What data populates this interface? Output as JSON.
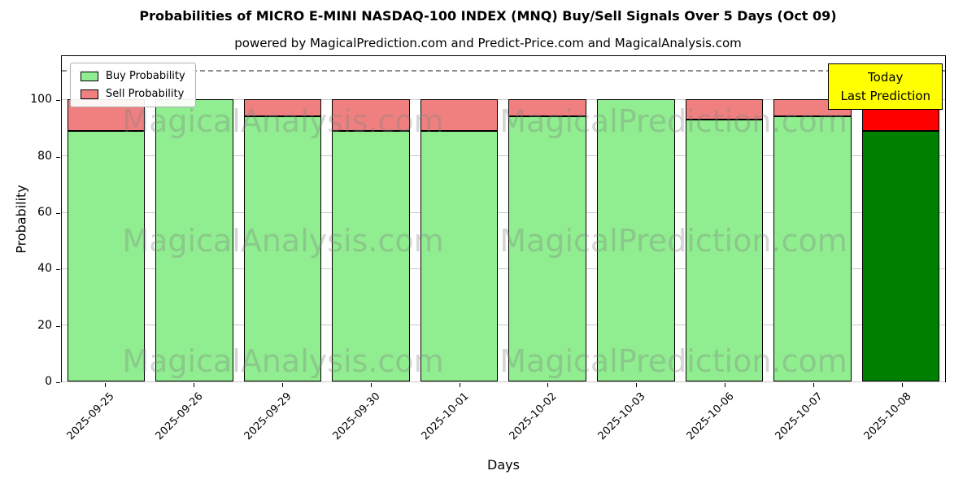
{
  "chart_data": {
    "type": "bar",
    "stacked": true,
    "title": "Probabilities of MICRO E-MINI NASDAQ-100 INDEX (MNQ) Buy/Sell Signals Over 5 Days (Oct 09)",
    "subtitle": "powered by MagicalPrediction.com and Predict-Price.com and MagicalAnalysis.com",
    "xlabel": "Days",
    "ylabel": "Probability",
    "ylim": [
      0,
      116
    ],
    "yticks": [
      0,
      20,
      40,
      60,
      80,
      100
    ],
    "threshold_line_y": 110,
    "grid": true,
    "legend_position": "upper-left",
    "categories": [
      "2025-09-25",
      "2025-09-26",
      "2025-09-29",
      "2025-09-30",
      "2025-10-01",
      "2025-10-02",
      "2025-10-03",
      "2025-10-06",
      "2025-10-07",
      "2025-10-08"
    ],
    "series": [
      {
        "name": "Buy Probability",
        "color": "#90EE90",
        "last_bar_color": "#008000",
        "values": [
          89,
          100,
          94,
          89,
          89,
          94,
          100,
          93,
          94,
          89
        ]
      },
      {
        "name": "Sell Probability",
        "color": "#F08080",
        "last_bar_color": "#FF0000",
        "values": [
          11,
          0,
          6,
          11,
          11,
          6,
          0,
          7,
          6,
          11
        ]
      }
    ],
    "annotation": {
      "line1": "Today",
      "line2": "Last Prediction",
      "bg_color": "#FFFF00"
    },
    "watermarks": {
      "left": "MagicalAnalysis.com",
      "right": "MagicalPrediction.com"
    }
  }
}
